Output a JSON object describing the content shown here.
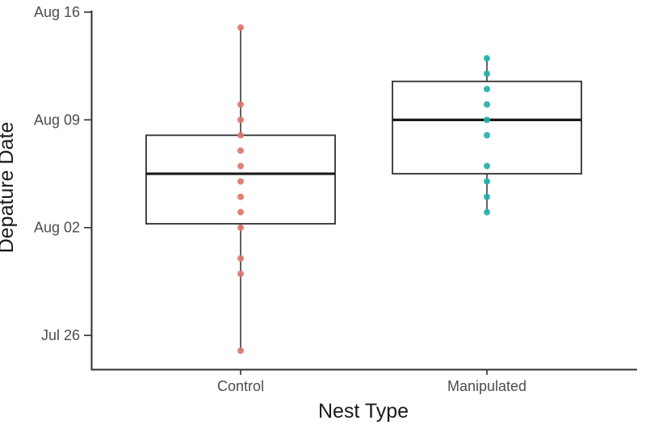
{
  "chart_data": {
    "type": "boxplot",
    "title": "",
    "xlabel": "Nest Type",
    "ylabel": "Depature Date",
    "background": "#ffffff",
    "grid": false,
    "legend": "none",
    "categories": [
      "Control",
      "Manipulated"
    ],
    "y_axis": {
      "unit": "date (numeric day, Jul 1 = 1, Aug 1 = 32)",
      "top_value": 47,
      "bottom_value": 23.8,
      "ticks": [
        {
          "label": "Aug 16",
          "value": 47
        },
        {
          "label": "Aug 09",
          "value": 40
        },
        {
          "label": "Aug 02",
          "value": 33
        },
        {
          "label": "Jul 26",
          "value": 26
        }
      ]
    },
    "series": [
      {
        "name": "Control",
        "point_color": "#E0756C",
        "box": {
          "whisker_low": 25,
          "q1": 33.25,
          "median": 36.5,
          "q3": 39,
          "whisker_high": 46
        },
        "box_dates": {
          "whisker_low": "Jul 25",
          "q1": "Aug 02",
          "median": "Aug 05/06",
          "q3": "Aug 08",
          "whisker_high": "Aug 15"
        },
        "points": [
          {
            "date": "Aug 15",
            "value": 46
          },
          {
            "date": "Aug 10",
            "value": 41
          },
          {
            "date": "Aug 09",
            "value": 40
          },
          {
            "date": "Aug 08",
            "value": 39
          },
          {
            "date": "Aug 07",
            "value": 38
          },
          {
            "date": "Aug 06",
            "value": 37
          },
          {
            "date": "Aug 05",
            "value": 36
          },
          {
            "date": "Aug 04",
            "value": 35
          },
          {
            "date": "Aug 03",
            "value": 34
          },
          {
            "date": "Aug 02",
            "value": 33
          },
          {
            "date": "Jul 31",
            "value": 31
          },
          {
            "date": "Jul 30",
            "value": 30
          },
          {
            "date": "Jul 25",
            "value": 25
          }
        ]
      },
      {
        "name": "Manipulated",
        "point_color": "#22AFAC",
        "box": {
          "whisker_low": 34,
          "q1": 36.5,
          "median": 40,
          "q3": 42.5,
          "whisker_high": 44
        },
        "box_dates": {
          "whisker_low": "Aug 03",
          "q1": "Aug 05/06",
          "median": "Aug 09",
          "q3": "Aug 11/12",
          "whisker_high": "Aug 13"
        },
        "points": [
          {
            "date": "Aug 13",
            "value": 44
          },
          {
            "date": "Aug 12",
            "value": 43
          },
          {
            "date": "Aug 11",
            "value": 42
          },
          {
            "date": "Aug 10",
            "value": 41
          },
          {
            "date": "Aug 09",
            "value": 40
          },
          {
            "date": "Aug 08",
            "value": 39
          },
          {
            "date": "Aug 06",
            "value": 37
          },
          {
            "date": "Aug 05",
            "value": 36
          },
          {
            "date": "Aug 04",
            "value": 35
          },
          {
            "date": "Aug 03",
            "value": 34
          }
        ]
      }
    ],
    "colors": {
      "box_fill": "#ffffff",
      "box_stroke": "#2f2f2f",
      "median_stroke": "#1a1a1a",
      "whisker_stroke": "#2f2f2f",
      "axis_line": "#2f2f2f",
      "tick_label": "#4d4d4d",
      "axis_title": "#1a1a1a"
    }
  }
}
